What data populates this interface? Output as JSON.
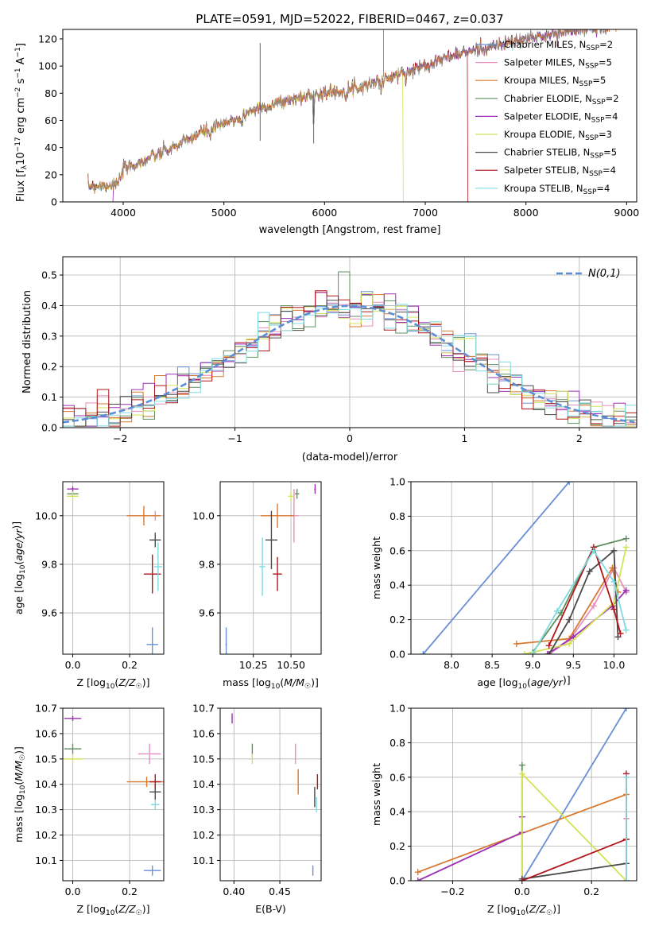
{
  "colors": [
    "#6a8fd6",
    "#e88fbf",
    "#d9782f",
    "#5f8f5f",
    "#9b2fb5",
    "#d4e25a",
    "#4a4a4a",
    "#b0151a",
    "#7fdbe0"
  ],
  "legend_labels": [
    "Chabrier MILES, N_SSP=2",
    "Salpeter MILES, N_SSP=5",
    "Kroupa MILES, N_SSP=5",
    "Chabrier ELODIE, N_SSP=2",
    "Salpeter ELODIE, N_SSP=4",
    "Kroupa ELODIE, N_SSP=3",
    "Chabrier STELIB, N_SSP=5",
    "Salpeter STELIB, N_SSP=4",
    "Kroupa STELIB, N_SSP=4"
  ],
  "chart_data": [
    {
      "id": "spectrum",
      "type": "line",
      "title": "PLATE=0591, MJD=52022, FIBERID=0467, z=0.037",
      "xlabel": "wavelength [Angstrom, rest frame]",
      "ylabel": "Flux [f_λ10^-17 erg cm^-2 s^-1 A^-1]",
      "xlim": [
        3400,
        9100
      ],
      "ylim": [
        0,
        127
      ],
      "xticks": [
        "4000",
        "5000",
        "6000",
        "7000",
        "8000",
        "9000"
      ],
      "yticks": [
        "0",
        "20",
        "40",
        "60",
        "80",
        "100",
        "120"
      ],
      "continuum_x": [
        3650,
        3800,
        3950,
        4000,
        4200,
        4500,
        4800,
        5000,
        5300,
        5600,
        5900,
        6200,
        6500,
        6800,
        7000,
        7200,
        7450,
        7700,
        8000,
        8300,
        8700,
        9000
      ],
      "continuum_y": [
        12,
        12,
        13,
        24,
        30,
        40,
        52,
        57,
        68,
        74,
        79,
        82,
        88,
        95,
        101,
        106,
        111,
        115,
        120,
        124,
        128,
        132
      ],
      "emission_spike_x": 5360,
      "emission_spike_y": 117,
      "cutoffs": [
        {
          "series": 7,
          "x": 7420
        },
        {
          "series": 5,
          "x": 6780
        },
        {
          "series": 4,
          "x": 3900
        }
      ]
    },
    {
      "id": "residuals",
      "type": "step",
      "xlabel": "(data-model)/error",
      "ylabel": "Normed distribution",
      "xlim": [
        -2.5,
        2.5
      ],
      "ylim": [
        0,
        0.56
      ],
      "xticks": [
        "−2",
        "−1",
        "0",
        "1",
        "2"
      ],
      "yticks": [
        "0.0",
        "0.1",
        "0.2",
        "0.3",
        "0.4",
        "0.5"
      ],
      "reference_label": "N(0,1)",
      "bin_width": 0.1
    },
    {
      "id": "age-vs-z",
      "type": "scatter",
      "xlabel": "Z [log10(Z/Z☉)]",
      "ylabel": "age  [log10(age/yr)]",
      "xlim": [
        -0.035,
        0.32
      ],
      "ylim": [
        9.43,
        10.14
      ],
      "xticks": [
        "0.0",
        "0.2"
      ],
      "yticks": [
        "9.6",
        "9.8",
        "10.0"
      ],
      "points": [
        {
          "s": 0,
          "x": 0.28,
          "y": 9.47,
          "xe": 0.02,
          "ye": 0.07
        },
        {
          "s": 1,
          "x": 0.29,
          "y": 10.0,
          "xe": 0.01,
          "ye": 0.02
        },
        {
          "s": 2,
          "x": 0.25,
          "y": 10.0,
          "xe": 0.06,
          "ye": 0.04
        },
        {
          "s": 3,
          "x": 0.0,
          "y": 10.09,
          "xe": 0.02,
          "ye": 0.01
        },
        {
          "s": 4,
          "x": 0.0,
          "y": 10.11,
          "xe": 0.02,
          "ye": 0.01
        },
        {
          "s": 5,
          "x": 0.0,
          "y": 10.08,
          "xe": 0.02,
          "ye": 0.02
        },
        {
          "s": 6,
          "x": 0.29,
          "y": 9.9,
          "xe": 0.02,
          "ye": 0.03
        },
        {
          "s": 7,
          "x": 0.28,
          "y": 9.76,
          "xe": 0.03,
          "ye": 0.08
        },
        {
          "s": 8,
          "x": 0.3,
          "y": 9.79,
          "xe": 0.015,
          "ye": 0.1
        }
      ]
    },
    {
      "id": "age-vs-mass",
      "type": "scatter",
      "xlabel": "mass [log10(M/M☉)]",
      "ylabel": "",
      "xlim": [
        10.03,
        10.7
      ],
      "ylim": [
        9.43,
        10.14
      ],
      "xticks": [
        "10.25",
        "10.50"
      ],
      "yticks": [
        "9.6",
        "9.8",
        "10.0"
      ],
      "points": [
        {
          "s": 0,
          "x": 10.07,
          "y": 9.47,
          "xe": 0.005,
          "ye": 0.07
        },
        {
          "s": 1,
          "x": 10.52,
          "y": 10.0,
          "xe": 0.03,
          "ye": 0.11
        },
        {
          "s": 2,
          "x": 10.41,
          "y": 10.0,
          "xe": 0.11,
          "ye": 0.05
        },
        {
          "s": 3,
          "x": 10.54,
          "y": 10.09,
          "xe": 0.015,
          "ye": 0.02
        },
        {
          "s": 4,
          "x": 10.66,
          "y": 10.11,
          "xe": 0.005,
          "ye": 0.02
        },
        {
          "s": 5,
          "x": 10.5,
          "y": 10.08,
          "xe": 0.02,
          "ye": 0.02
        },
        {
          "s": 6,
          "x": 10.37,
          "y": 9.9,
          "xe": 0.04,
          "ye": 0.12
        },
        {
          "s": 7,
          "x": 10.41,
          "y": 9.76,
          "xe": 0.03,
          "ye": 0.07
        },
        {
          "s": 8,
          "x": 10.31,
          "y": 9.79,
          "xe": 0.02,
          "ye": 0.12
        }
      ]
    },
    {
      "id": "weight-vs-age",
      "type": "line",
      "xlabel": "age  [log10(age/yr)]",
      "ylabel": "mass weight",
      "xlim": [
        7.5,
        10.28
      ],
      "ylim": [
        0,
        1
      ],
      "xticks": [
        "8.0",
        "8.5",
        "9.0",
        "9.5",
        "10.0"
      ],
      "yticks": [
        "0.0",
        "0.2",
        "0.4",
        "0.6",
        "0.8",
        "1.0"
      ],
      "series": [
        {
          "s": 0,
          "x": [
            7.65,
            9.45
          ],
          "y": [
            0.0,
            1.0
          ]
        },
        {
          "s": 1,
          "x": [
            9.2,
            9.45,
            9.75,
            10.0,
            10.15
          ],
          "y": [
            0.0,
            0.08,
            0.28,
            0.5,
            0.36
          ]
        },
        {
          "s": 2,
          "x": [
            8.8,
            9.45,
            9.98,
            10.05
          ],
          "y": [
            0.06,
            0.09,
            0.5,
            0.36
          ]
        },
        {
          "s": 3,
          "x": [
            9.0,
            9.35,
            9.75,
            10.15
          ],
          "y": [
            0.01,
            0.24,
            0.62,
            0.67
          ]
        },
        {
          "s": 4,
          "x": [
            9.18,
            9.5,
            9.98,
            10.15
          ],
          "y": [
            0.0,
            0.1,
            0.28,
            0.37
          ]
        },
        {
          "s": 5,
          "x": [
            8.9,
            9.45,
            10.0,
            10.15
          ],
          "y": [
            0.0,
            0.06,
            0.3,
            0.62
          ]
        },
        {
          "s": 6,
          "x": [
            9.2,
            9.45,
            9.7,
            10.0,
            10.05
          ],
          "y": [
            0.0,
            0.2,
            0.48,
            0.6,
            0.1
          ]
        },
        {
          "s": 7,
          "x": [
            9.2,
            9.75,
            10.0,
            10.08
          ],
          "y": [
            0.05,
            0.62,
            0.26,
            0.12
          ]
        },
        {
          "s": 8,
          "x": [
            9.0,
            9.3,
            9.75,
            10.0,
            10.15
          ],
          "y": [
            0.0,
            0.25,
            0.6,
            0.42,
            0.14
          ]
        }
      ]
    },
    {
      "id": "mass-vs-z",
      "type": "scatter",
      "xlabel": "Z [log10(Z/Z☉)]",
      "ylabel": "mass [log10(M/M☉)]",
      "xlim": [
        -0.035,
        0.32
      ],
      "ylim": [
        10.02,
        10.7
      ],
      "xticks": [
        "0.0",
        "0.2"
      ],
      "yticks": [
        "10.1",
        "10.2",
        "10.3",
        "10.4",
        "10.5",
        "10.6",
        "10.7"
      ],
      "points": [
        {
          "s": 0,
          "x": 0.28,
          "y": 10.06,
          "xe": 0.03,
          "ye": 0.02
        },
        {
          "s": 1,
          "x": 0.27,
          "y": 10.52,
          "xe": 0.04,
          "ye": 0.04
        },
        {
          "s": 2,
          "x": 0.26,
          "y": 10.41,
          "xe": 0.07,
          "ye": 0.02
        },
        {
          "s": 3,
          "x": 0.0,
          "y": 10.54,
          "xe": 0.03,
          "ye": 0.02
        },
        {
          "s": 4,
          "x": 0.0,
          "y": 10.66,
          "xe": 0.03,
          "ye": 0.01
        },
        {
          "s": 5,
          "x": 0.0,
          "y": 10.5,
          "xe": 0.04,
          "ye": 0.02
        },
        {
          "s": 6,
          "x": 0.29,
          "y": 10.37,
          "xe": 0.02,
          "ye": 0.03
        },
        {
          "s": 7,
          "x": 0.29,
          "y": 10.41,
          "xe": 0.02,
          "ye": 0.03
        },
        {
          "s": 8,
          "x": 0.29,
          "y": 10.32,
          "xe": 0.015,
          "ye": 0.02
        }
      ]
    },
    {
      "id": "mass-vs-ebv",
      "type": "scatter",
      "xlabel": "E(B-V)",
      "ylabel": "",
      "xlim": [
        0.385,
        0.495
      ],
      "ylim": [
        10.02,
        10.7
      ],
      "xticks": [
        "0.40",
        "0.45"
      ],
      "yticks": [
        "10.1",
        "10.2",
        "10.3",
        "10.4",
        "10.5",
        "10.6",
        "10.7"
      ],
      "points": [
        {
          "s": 0,
          "x": 0.486,
          "y": 10.06,
          "xe": 0.0,
          "ye": 0.02
        },
        {
          "s": 1,
          "x": 0.467,
          "y": 10.52,
          "xe": 0.0,
          "ye": 0.04
        },
        {
          "s": 2,
          "x": 0.47,
          "y": 10.41,
          "xe": 0.0,
          "ye": 0.05
        },
        {
          "s": 3,
          "x": 0.42,
          "y": 10.54,
          "xe": 0.0,
          "ye": 0.02
        },
        {
          "s": 4,
          "x": 0.398,
          "y": 10.66,
          "xe": 0.0,
          "ye": 0.02
        },
        {
          "s": 5,
          "x": 0.42,
          "y": 10.5,
          "xe": 0.0,
          "ye": 0.02
        },
        {
          "s": 6,
          "x": 0.488,
          "y": 10.35,
          "xe": 0.0,
          "ye": 0.04
        },
        {
          "s": 7,
          "x": 0.491,
          "y": 10.41,
          "xe": 0.0,
          "ye": 0.03
        },
        {
          "s": 8,
          "x": 0.49,
          "y": 10.32,
          "xe": 0.0,
          "ye": 0.03
        }
      ]
    },
    {
      "id": "weight-vs-z",
      "type": "line",
      "xlabel": "Z [log10(Z/Z☉)]",
      "ylabel": "mass weight",
      "xlim": [
        -0.32,
        0.33
      ],
      "ylim": [
        0,
        1
      ],
      "xticks": [
        "−0.2",
        "0.0",
        "0.2"
      ],
      "yticks": [
        "0.0",
        "0.2",
        "0.4",
        "0.6",
        "0.8",
        "1.0"
      ],
      "series": [
        {
          "s": 0,
          "x": [
            0.0,
            0.3
          ],
          "y": [
            0.0,
            1.0
          ]
        },
        {
          "s": 1,
          "x": [
            0.3,
            0.3,
            0.3
          ],
          "y": [
            0.0,
            0.36,
            0.62
          ]
        },
        {
          "s": 2,
          "x": [
            -0.3,
            0.3
          ],
          "y": [
            0.05,
            0.5
          ]
        },
        {
          "s": 3,
          "x": [
            0.0,
            0.0
          ],
          "y": [
            0.0,
            0.67
          ]
        },
        {
          "s": 4,
          "x": [
            -0.3,
            0.0,
            0.0
          ],
          "y": [
            0.0,
            0.28,
            0.37
          ]
        },
        {
          "s": 5,
          "x": [
            0.0,
            0.0,
            0.3
          ],
          "y": [
            0.0,
            0.62,
            0.0
          ]
        },
        {
          "s": 6,
          "x": [
            0.0,
            0.3,
            0.3
          ],
          "y": [
            0.01,
            0.1,
            0.24
          ]
        },
        {
          "s": 7,
          "x": [
            0.0,
            0.3,
            0.3
          ],
          "y": [
            0.0,
            0.24,
            0.62
          ]
        },
        {
          "s": 8,
          "x": [
            0.3,
            0.3
          ],
          "y": [
            0.0,
            0.6
          ]
        }
      ]
    }
  ]
}
